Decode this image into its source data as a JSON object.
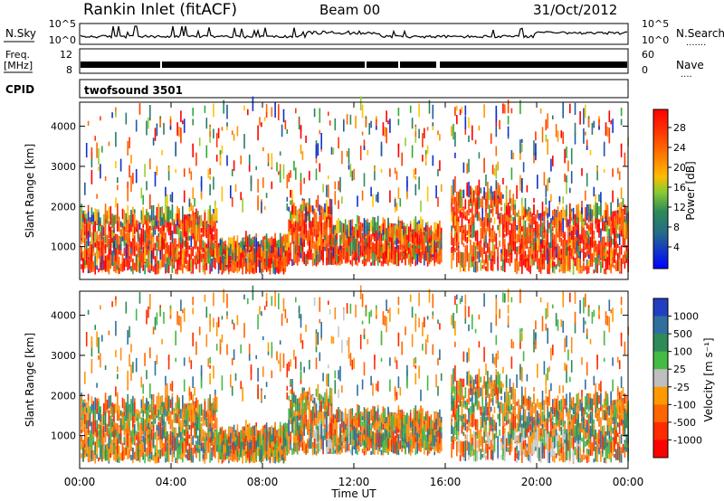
{
  "header": {
    "station": "Rankin Inlet (fitACF)",
    "beam": "Beam 00",
    "date": "31/Oct/2012"
  },
  "strip_labels": {
    "nsky": "N.Sky",
    "nsearch": "N.Search",
    "nsearch_dots": ".......",
    "freq_line1": "Freq.",
    "freq_line2": "[MHz]",
    "nave": "Nave",
    "nave_dots": "....",
    "cpid": "CPID",
    "cpid_value": "twofsound 3501"
  },
  "strip_ticks": {
    "nsky_left": [
      "10^5",
      "10^0"
    ],
    "nsky_right": [
      "10^5",
      "10^0"
    ],
    "freq_left": [
      "12",
      "8"
    ],
    "nave_right": [
      "60",
      "0"
    ]
  },
  "chart_data": [
    {
      "type": "heatmap",
      "name": "power-panel",
      "ylabel": "Slant Range [km]",
      "xlabel": "",
      "yticks": [
        1000,
        2000,
        3000,
        4000
      ],
      "ylim": [
        180,
        4600
      ],
      "colorbar": {
        "label": "Power [dB]",
        "ticks": [
          "28",
          "24",
          "20",
          "16",
          "12",
          "8",
          "4"
        ],
        "colors": [
          "#ff0000",
          "#ff3a00",
          "#ff6a00",
          "#ff9900",
          "#ffc400",
          "#99cc33",
          "#33aa33",
          "#2e8b57",
          "#2a7a6a",
          "#1f5aa0",
          "#1030d0",
          "#0000ff"
        ]
      }
    },
    {
      "type": "heatmap",
      "name": "velocity-panel",
      "ylabel": "Slant Range [km]",
      "xlabel": "Time UT",
      "xticks": [
        "00:00",
        "04:00",
        "08:00",
        "12:00",
        "16:00",
        "20:00",
        "00:00"
      ],
      "yticks": [
        1000,
        2000,
        3000,
        4000
      ],
      "ylim": [
        180,
        4600
      ],
      "colorbar": {
        "label": "Velocity [m s⁻¹]",
        "ticks": [
          "1000",
          "500",
          "100",
          "25",
          "-25",
          "-100",
          "-500",
          "-1000"
        ],
        "colors": [
          "#2040c0",
          "#2f6fa0",
          "#2e8b57",
          "#44bb44",
          "#bfbfbf",
          "#ff9900",
          "#ff6600",
          "#ff2a00",
          "#ff0000"
        ]
      }
    }
  ],
  "colors": {
    "ground_scatter": "#c8c8c8",
    "axis": "#000000"
  }
}
